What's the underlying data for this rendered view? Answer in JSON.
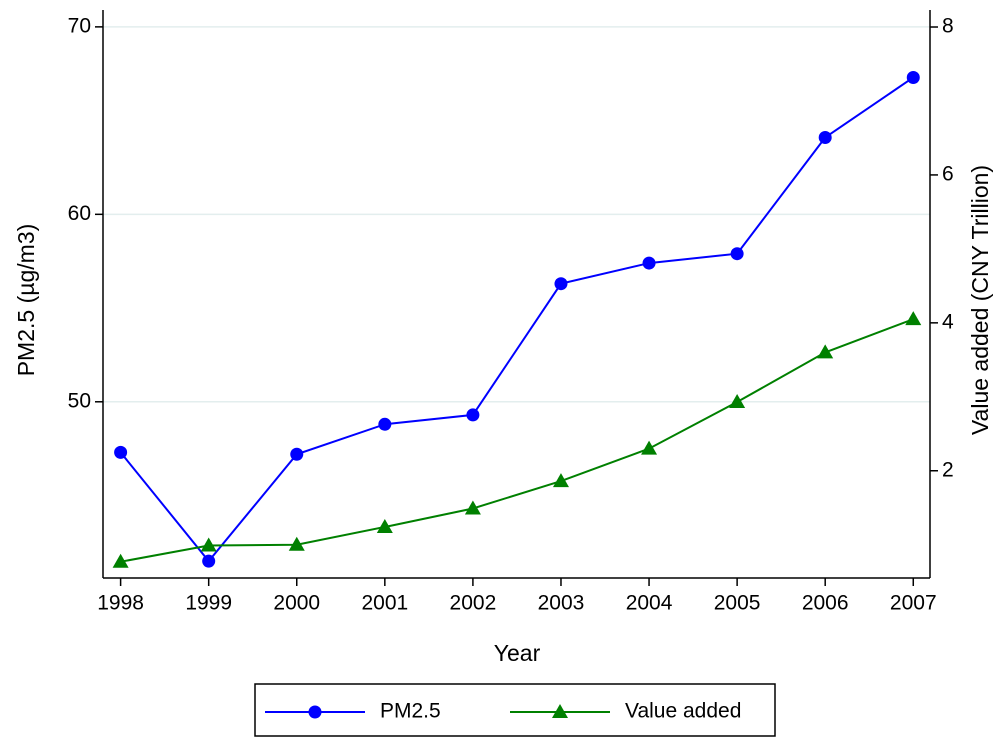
{
  "chart_data": {
    "type": "line",
    "x_label": "Year",
    "y_label": "PM2.5 (µg/m3)",
    "y2_label": "Value added (CNY Trillion)",
    "x": [
      1998,
      1999,
      2000,
      2001,
      2002,
      2003,
      2004,
      2005,
      2006,
      2007
    ],
    "xlim": [
      1997.8,
      2007.19
    ],
    "xticks": [
      1998,
      1999,
      2000,
      2001,
      2002,
      2003,
      2004,
      2005,
      2006,
      2007
    ],
    "ylim": [
      40.6,
      70.9
    ],
    "yticks": [
      50,
      60,
      70
    ],
    "y2lim": [
      0.55,
      8.23
    ],
    "y2ticks": [
      2,
      4,
      6,
      8
    ],
    "grid": true,
    "series": [
      {
        "name": "PM2.5",
        "color": "#0000ff",
        "marker": "circle",
        "values": [
          47.3,
          41.5,
          47.2,
          48.8,
          49.3,
          56.3,
          57.4,
          57.9,
          64.1,
          67.3
        ]
      },
      {
        "name": "Value added",
        "color": "#008000",
        "marker": "triangle",
        "axis": "y2",
        "values": [
          0.77,
          0.99,
          1.0,
          1.24,
          1.49,
          1.86,
          2.3,
          2.93,
          3.6,
          4.05
        ]
      }
    ]
  }
}
